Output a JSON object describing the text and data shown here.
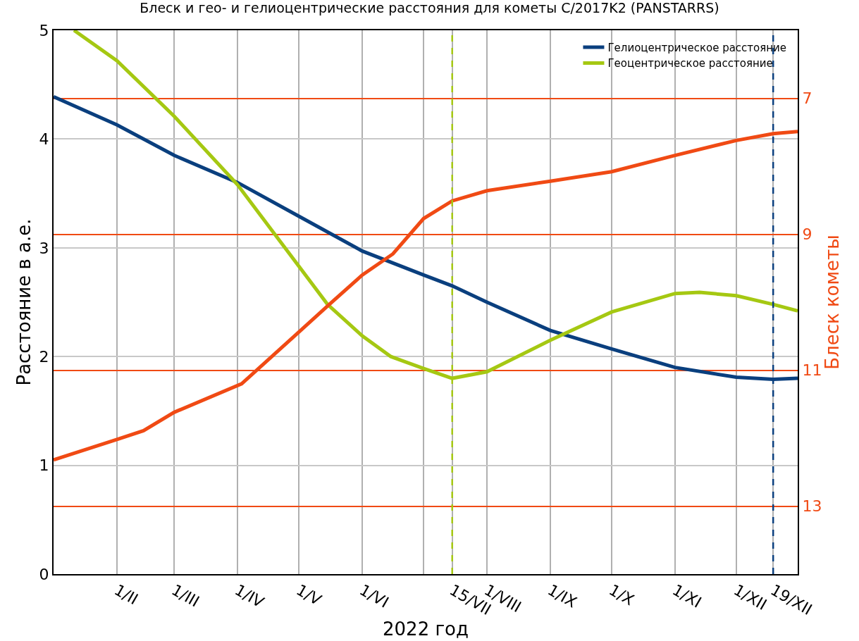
{
  "chart_data": {
    "type": "line",
    "title": "Блеск и гео- и гелиоцентрические расстояния для кометы C/2017K2 (PANSTARRS)",
    "xlabel": "2022 год",
    "ylabel": "Расстояние в а.е.",
    "y2label": "Блеск кометы",
    "xlim": [
      "2022-01-01",
      "2022-12-31"
    ],
    "xticks": [
      {
        "value": "2022-02-01",
        "label": "1/II"
      },
      {
        "value": "2022-03-01",
        "label": "1/III"
      },
      {
        "value": "2022-04-01",
        "label": "1/IV"
      },
      {
        "value": "2022-05-01",
        "label": "1/V"
      },
      {
        "value": "2022-06-01",
        "label": "1/VI"
      },
      {
        "value": "2022-07-01",
        "label": null
      },
      {
        "value": "2022-07-15",
        "label": "15/VII"
      },
      {
        "value": "2022-08-01",
        "label": "1/VIII"
      },
      {
        "value": "2022-09-01",
        "label": "1/IX"
      },
      {
        "value": "2022-10-01",
        "label": "1/X"
      },
      {
        "value": "2022-11-01",
        "label": "1/XI"
      },
      {
        "value": "2022-12-01",
        "label": "1/XII"
      },
      {
        "value": "2022-12-19",
        "label": "19/XII"
      }
    ],
    "ylim": [
      0,
      5
    ],
    "yticks": [
      0,
      1,
      2,
      3,
      4,
      5
    ],
    "y2lim": [
      14,
      6
    ],
    "y2ticks": [
      7,
      9,
      11,
      13
    ],
    "grid": true,
    "legend": "top right",
    "line_style": "solid",
    "series": [
      {
        "name": "Гелиоцентрическое расстояние",
        "color": "#0a3f7e",
        "x": [
          "2022-01-01",
          "2022-02-01",
          "2022-03-01",
          "2022-04-01",
          "2022-05-01",
          "2022-06-01",
          "2022-07-01",
          "2022-07-15",
          "2022-08-01",
          "2022-09-01",
          "2022-10-01",
          "2022-11-01",
          "2022-12-01",
          "2022-12-19",
          "2022-12-31"
        ],
        "values": [
          4.39,
          4.13,
          3.85,
          3.6,
          3.29,
          2.97,
          2.75,
          2.65,
          2.5,
          2.24,
          2.07,
          1.9,
          1.81,
          1.79,
          1.8
        ]
      },
      {
        "name": "Геоцентрическое расстояние",
        "color": "#a5c812",
        "x": [
          "2022-01-11",
          "2022-02-01",
          "2022-03-01",
          "2022-04-01",
          "2022-05-01",
          "2022-05-15",
          "2022-06-01",
          "2022-06-15",
          "2022-07-01",
          "2022-07-15",
          "2022-08-01",
          "2022-09-01",
          "2022-10-01",
          "2022-11-01",
          "2022-11-13",
          "2022-12-01",
          "2022-12-19",
          "2022-12-31"
        ],
        "values": [
          5.0,
          4.72,
          4.21,
          3.58,
          2.83,
          2.48,
          2.19,
          2.0,
          1.89,
          1.8,
          1.86,
          2.15,
          2.41,
          2.58,
          2.59,
          2.56,
          2.48,
          2.42
        ]
      },
      {
        "color": "#f04a14",
        "axis": "y2",
        "x": [
          "2022-01-01",
          "2022-02-01",
          "2022-02-14",
          "2022-03-01",
          "2022-04-03",
          "2022-05-01",
          "2022-05-16",
          "2022-06-01",
          "2022-06-16",
          "2022-07-01",
          "2022-07-15",
          "2022-08-01",
          "2022-09-01",
          "2022-10-01",
          "2022-11-01",
          "2022-12-01",
          "2022-12-19",
          "2022-12-31"
        ],
        "values": [
          12.32,
          12.02,
          11.89,
          11.62,
          11.2,
          10.44,
          10.03,
          9.6,
          9.29,
          8.77,
          8.51,
          8.36,
          8.22,
          8.08,
          7.84,
          7.62,
          7.52,
          7.49
        ]
      }
    ],
    "ref_lines": [
      {
        "axis": "x",
        "value": "2022-07-15",
        "color": "#a5c812",
        "line_style": "dashed"
      },
      {
        "axis": "x",
        "value": "2022-12-19",
        "color": "#0a3f7e",
        "line_style": "dashed"
      }
    ]
  }
}
